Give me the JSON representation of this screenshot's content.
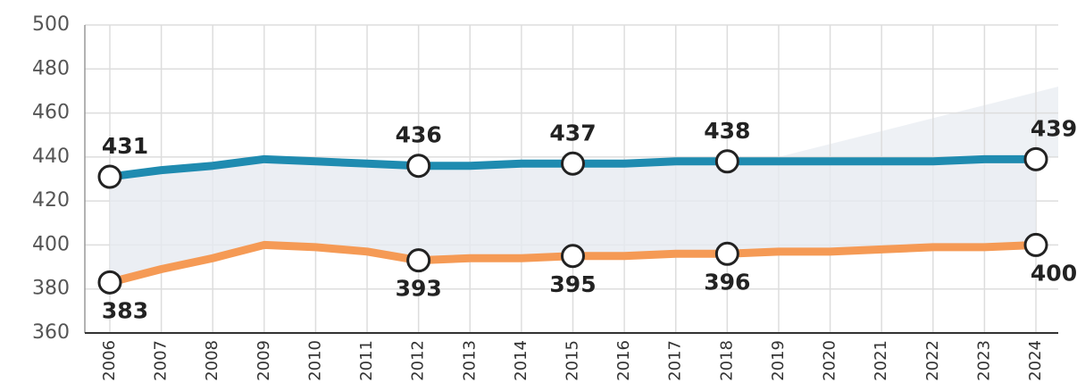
{
  "chart_data": {
    "type": "line",
    "categories": [
      "2006",
      "2007",
      "2008",
      "2009",
      "2010",
      "2011",
      "2012",
      "2013",
      "2014",
      "2015",
      "2016",
      "2017",
      "2018",
      "2019",
      "2020",
      "2021",
      "2022",
      "2023",
      "2024"
    ],
    "series": [
      {
        "color": "#1f8bb0",
        "values": [
          431,
          434,
          436,
          439,
          438,
          437,
          436,
          436,
          437,
          437,
          437,
          438,
          438,
          438,
          438,
          438,
          438,
          439,
          439
        ],
        "value_labels": [
          "431",
          null,
          null,
          null,
          null,
          null,
          "436",
          null,
          null,
          "437",
          null,
          null,
          "438",
          null,
          null,
          null,
          null,
          null,
          "439"
        ]
      },
      {
        "color": "#f59a55",
        "values": [
          383,
          389,
          394,
          400,
          399,
          397,
          393,
          394,
          394,
          395,
          395,
          396,
          396,
          397,
          397,
          398,
          399,
          399,
          400
        ],
        "value_labels": [
          "383",
          null,
          null,
          null,
          null,
          null,
          "393",
          null,
          null,
          "395",
          null,
          null,
          "396",
          null,
          null,
          null,
          null,
          null,
          "400"
        ]
      }
    ],
    "ylim": [
      360,
      500
    ],
    "yticks": [
      360,
      380,
      400,
      420,
      440,
      460,
      480,
      500
    ],
    "grid": true
  }
}
